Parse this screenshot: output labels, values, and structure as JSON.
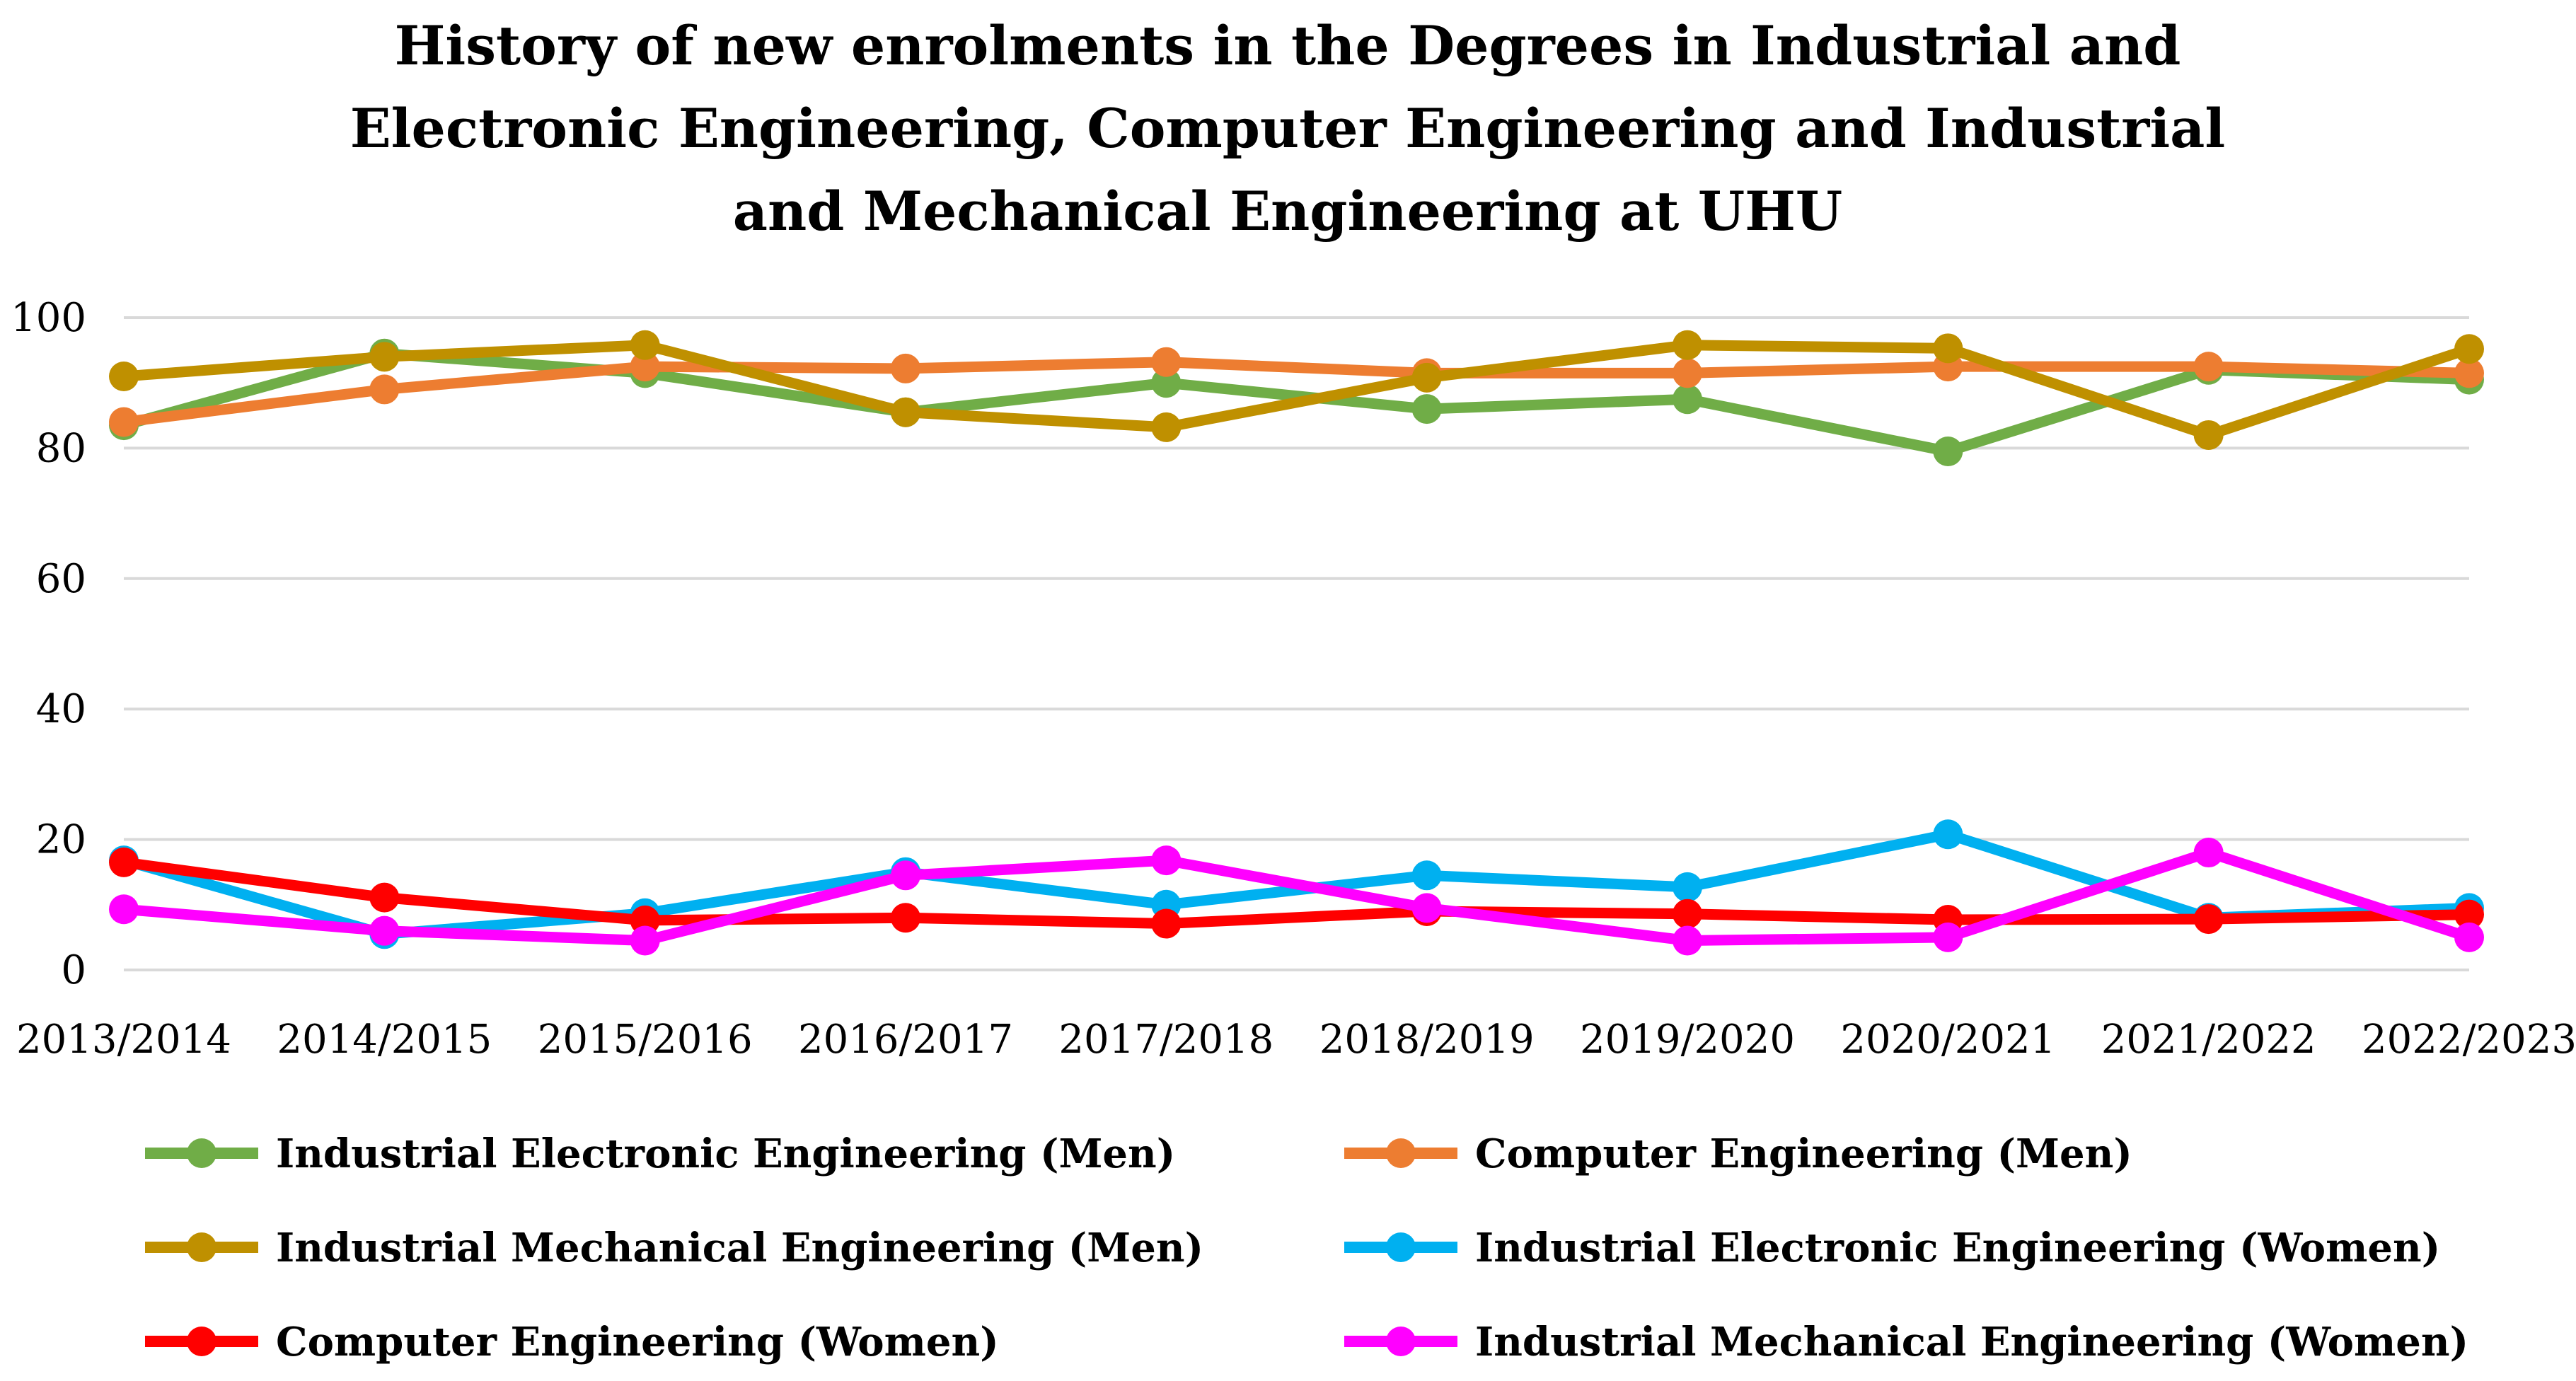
{
  "chart_data": {
    "type": "line",
    "title": "History of new enrolments in the Degrees in Industrial and Electronic Engineering, Computer Engineering and Industrial and Mechanical Engineering at UHU",
    "categories": [
      "2013/2014",
      "2014/2015",
      "2015/2016",
      "2016/2017",
      "2017/2018",
      "2018/2019",
      "2019/2020",
      "2020/2021",
      "2021/2022",
      "2022/2023"
    ],
    "xlabel": "",
    "ylabel": "",
    "ylim": [
      0,
      100
    ],
    "yticks": [
      0,
      20,
      40,
      60,
      80,
      100
    ],
    "grid": true,
    "legend_position": "bottom",
    "series": [
      {
        "name": "Industrial Electronic Engineering (Men)",
        "color": "#70ad47",
        "values": [
          83.5,
          94.5,
          91.5,
          85.5,
          90.0,
          86.0,
          87.5,
          79.5,
          92.0,
          90.5
        ]
      },
      {
        "name": "Computer Engineering (Men)",
        "color": "#ed7d31",
        "values": [
          84.0,
          89.0,
          92.5,
          92.2,
          93.2,
          91.5,
          91.5,
          92.5,
          92.5,
          91.5
        ]
      },
      {
        "name": "Industrial Mechanical Engineering (Men)",
        "color": "#bf9000",
        "values": [
          91.0,
          94.0,
          95.8,
          85.5,
          83.2,
          90.8,
          95.8,
          95.3,
          82.0,
          95.2
        ]
      },
      {
        "name": "Industrial Electronic Engineering (Women)",
        "color": "#00b0f0",
        "values": [
          16.8,
          5.5,
          8.7,
          15.0,
          10.0,
          14.5,
          12.7,
          20.8,
          8.0,
          9.5
        ]
      },
      {
        "name": "Computer Engineering (Women)",
        "color": "#ff0000",
        "values": [
          16.5,
          11.1,
          7.6,
          8.0,
          7.1,
          9.0,
          8.6,
          7.7,
          7.8,
          8.5
        ]
      },
      {
        "name": "Industrial Mechanical Engineering (Women)",
        "color": "#ff00ff",
        "values": [
          9.3,
          6.0,
          4.5,
          14.5,
          16.8,
          9.5,
          4.5,
          5.0,
          18.0,
          5.0
        ]
      }
    ]
  }
}
